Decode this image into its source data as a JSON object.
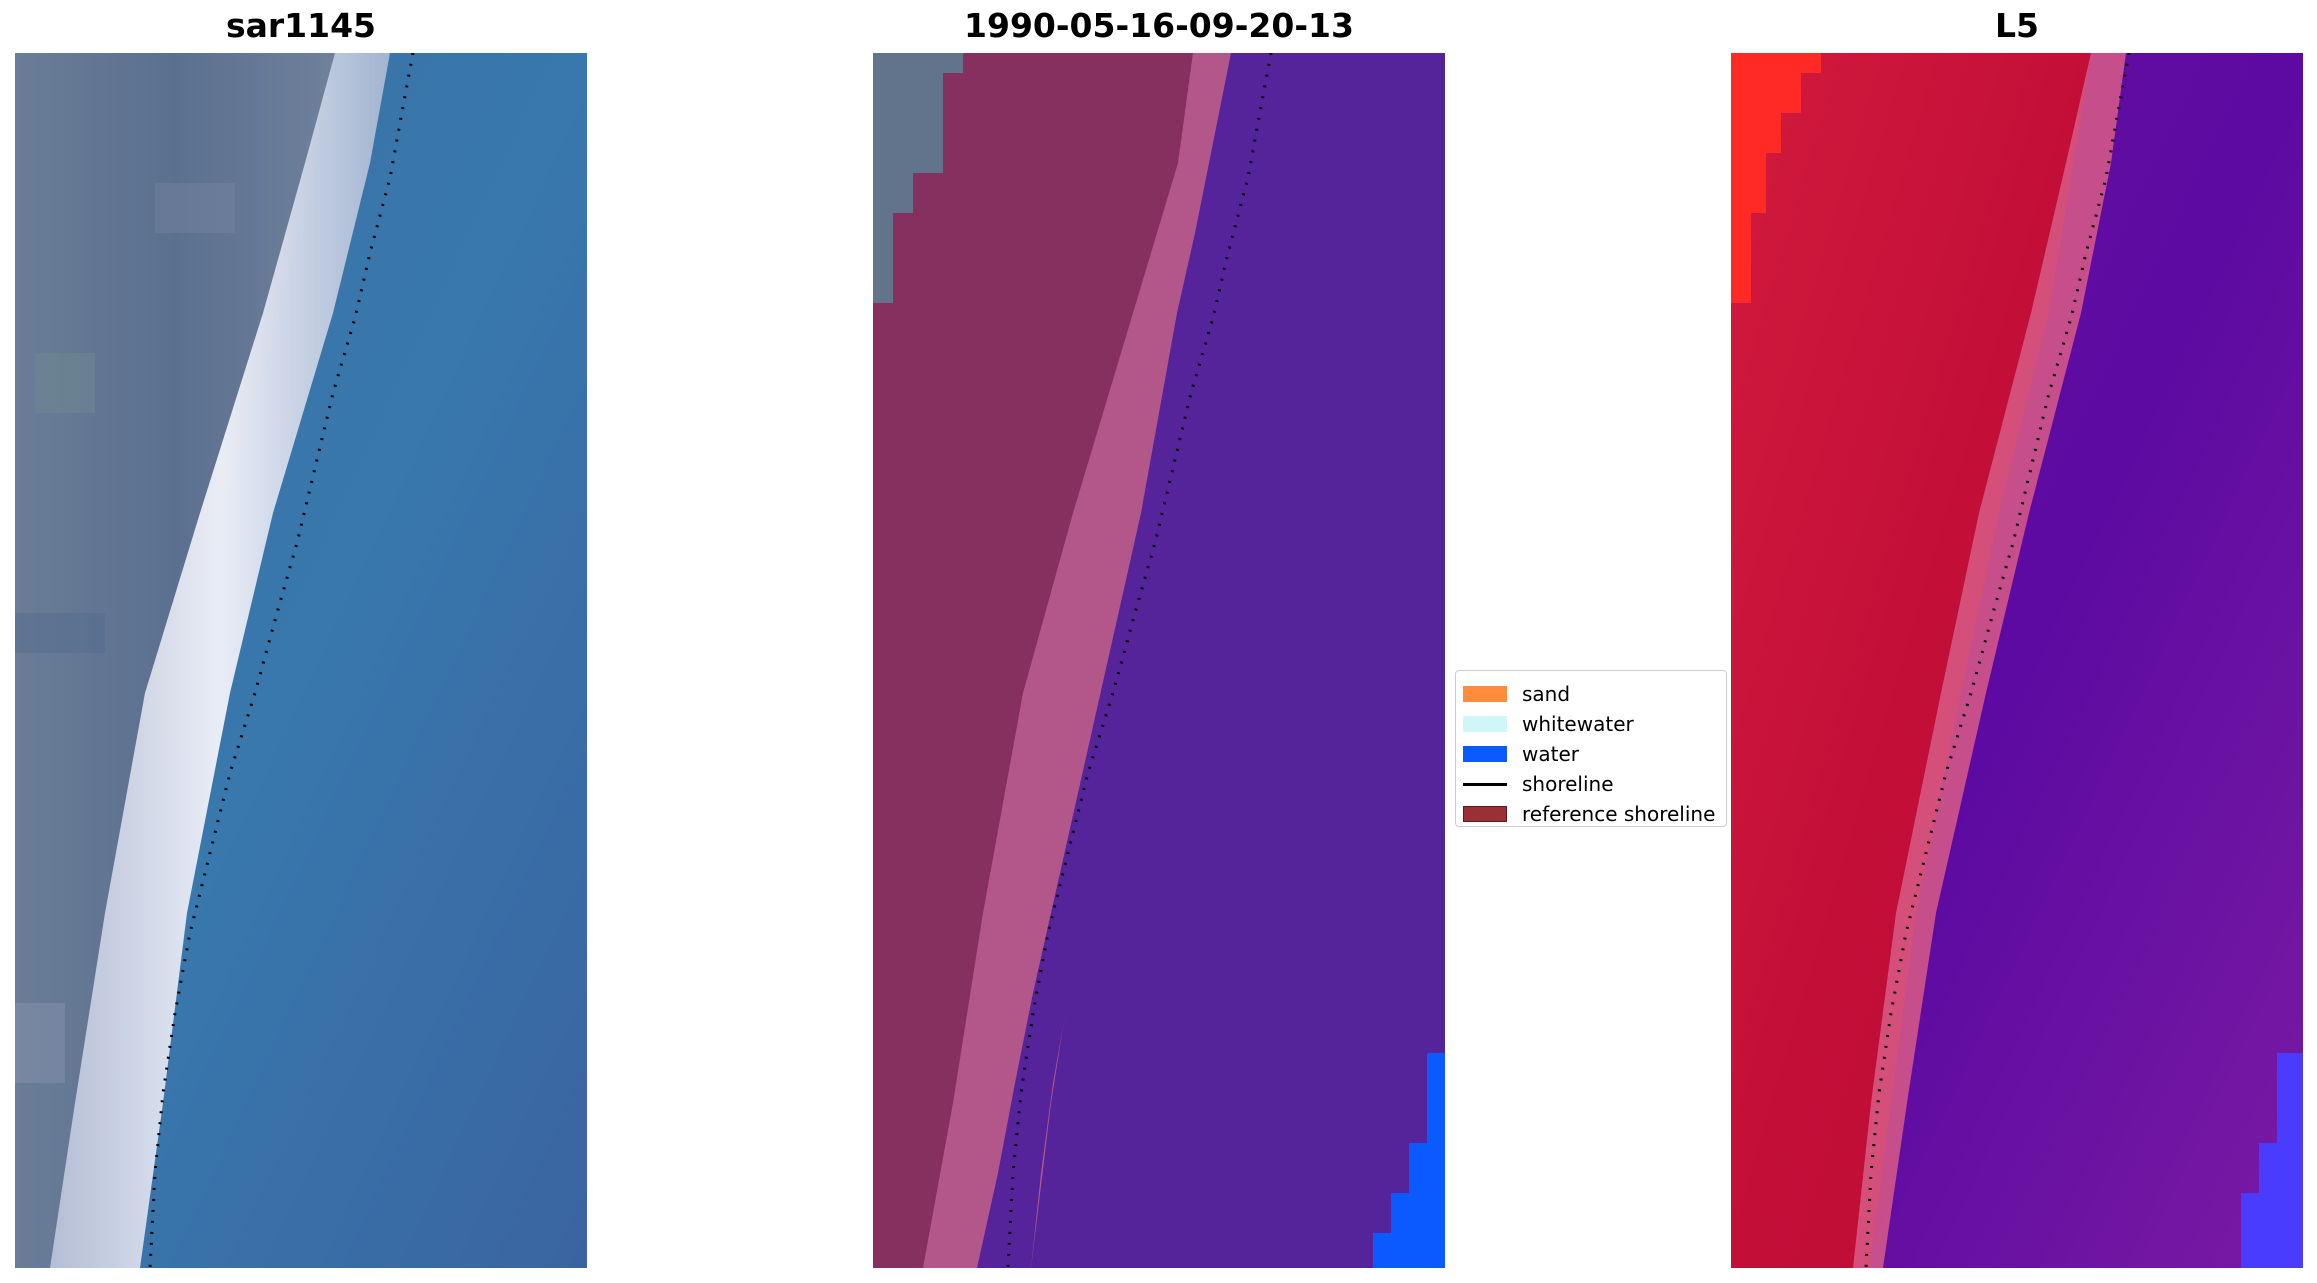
{
  "panels": {
    "rgb": {
      "title": "sar1145"
    },
    "classification": {
      "title": "1990-05-16-09-20-13"
    },
    "index": {
      "title": "L5"
    }
  },
  "legend": {
    "items": [
      {
        "label": "sand",
        "kind": "patch",
        "color": "#ff8c3c"
      },
      {
        "label": "whitewater",
        "kind": "patch",
        "color": "#cff7f7"
      },
      {
        "label": "water",
        "kind": "patch",
        "color": "#0a5aff"
      },
      {
        "label": "shoreline",
        "kind": "line",
        "color": "#000000"
      },
      {
        "label": "reference shoreline",
        "kind": "patch",
        "color": "#9a2f35"
      }
    ]
  },
  "colors": {
    "rgb_land": "#5d7391",
    "rgb_land_dark": "#536a88",
    "rgb_water": "#3a6fa8",
    "rgb_whitewater": "#e6e8f3",
    "class_land": "#86305f",
    "class_land_grey": "#62748c",
    "class_beach": "#b3578a",
    "class_water": "#55249a",
    "class_water_blue": "#0a5aff",
    "index_land_bright": "#ff2a25",
    "index_land": "#c20f3a",
    "index_beach": "#d85b87",
    "index_water": "#6b14a2",
    "index_water_dark": "#5a0aa0",
    "index_water_blue": "#4a3cff",
    "shoreline_dots": "#000000"
  }
}
